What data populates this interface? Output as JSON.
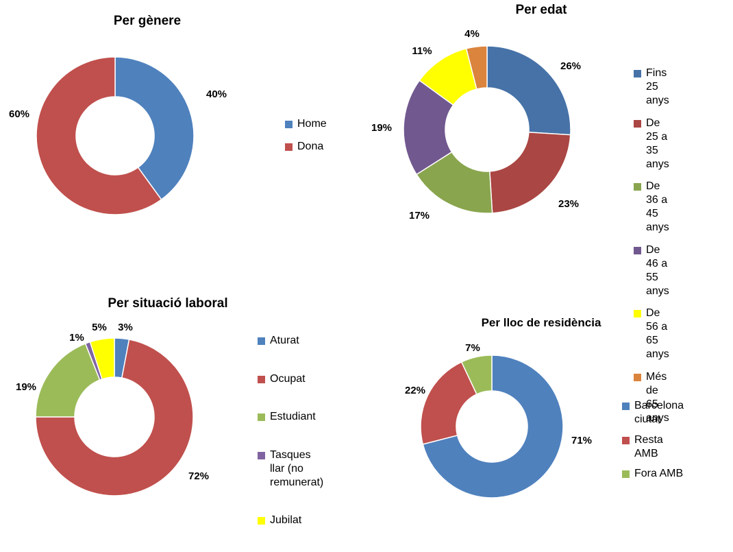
{
  "chart_data": [
    {
      "type": "pie",
      "title": "Per gènere",
      "categories": [
        "Home",
        "Dona"
      ],
      "values": [
        40,
        60
      ],
      "data_labels": [
        "40%",
        "60%"
      ],
      "colors": [
        "#4F81BD",
        "#C0504D"
      ]
    },
    {
      "type": "pie",
      "title": "Per edat",
      "categories": [
        "Fins 25 anys",
        "De 25 a 35 anys",
        "De 36 a 45 anys",
        "De 46 a 55 anys",
        "De 56 a 65 anys",
        "Més de 65 anys"
      ],
      "values": [
        26,
        23,
        17,
        19,
        11,
        4
      ],
      "data_labels": [
        "26%",
        "23%",
        "17%",
        "19%",
        "11%",
        "4%"
      ],
      "colors": [
        "#4672A7",
        "#AA4643",
        "#89A54E",
        "#71588F",
        "#FFFF00",
        "#DB843D"
      ]
    },
    {
      "type": "pie",
      "title": "Per situació laboral",
      "categories": [
        "Aturat",
        "Ocupat",
        "Estudiant",
        "Tasques llar (no\nremunerat)",
        "Jubilat"
      ],
      "values": [
        3,
        72,
        19,
        1,
        5
      ],
      "data_labels": [
        "3%",
        "72%",
        "19%",
        "1%",
        "5%"
      ],
      "colors": [
        "#4F81BD",
        "#C0504D",
        "#9BBB59",
        "#8064A2",
        "#FFFF00"
      ]
    },
    {
      "type": "pie",
      "title": "Per lloc de residència",
      "categories": [
        "Barcelona ciutat",
        "Resta AMB",
        "Fora AMB"
      ],
      "values": [
        71,
        22,
        7
      ],
      "data_labels": [
        "71%",
        "22%",
        "7%"
      ],
      "colors": [
        "#4F81BD",
        "#C0504D",
        "#9BBB59"
      ]
    }
  ]
}
